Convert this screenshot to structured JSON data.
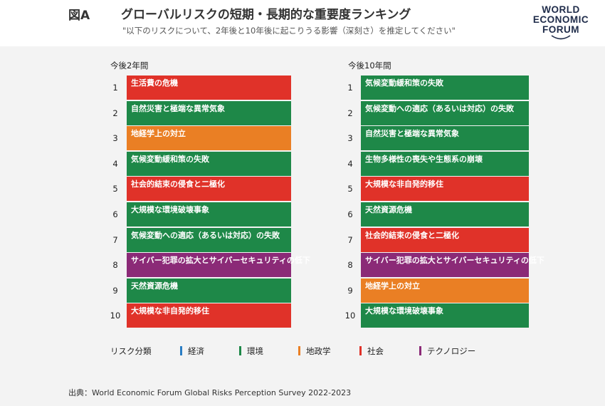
{
  "header": {
    "figure_label": "図A",
    "title": "グローバルリスクの短期・長期的な重要度ランキング",
    "subtitle": "\"以下のリスクについて、2年後と10年後に起こりうる影響（深刻さ）を推定してください\"",
    "logo_lines": [
      "WORLD",
      "ECONOMIC",
      "FORUM"
    ]
  },
  "colors": {
    "経済": "#2a7dc4",
    "環境": "#1e8848",
    "地政学": "#ea7f24",
    "社会": "#e03229",
    "テクノロジー": "#8b2a77"
  },
  "chart_data": {
    "type": "table",
    "columns": [
      {
        "title": "今後2年間",
        "rows": [
          {
            "rank": "1",
            "label": "生活費の危機",
            "category": "社会"
          },
          {
            "rank": "2",
            "label": "自然災害と極端な異常気象",
            "category": "環境"
          },
          {
            "rank": "3",
            "label": "地経学上の対立",
            "category": "地政学"
          },
          {
            "rank": "4",
            "label": "気候変動緩和策の失敗",
            "category": "環境"
          },
          {
            "rank": "5",
            "label": "社会的結束の侵食と二極化",
            "category": "社会"
          },
          {
            "rank": "6",
            "label": "大規模な環境破壊事象",
            "category": "環境"
          },
          {
            "rank": "7",
            "label": "気候変動への適応（あるいは対応）の失敗",
            "category": "環境"
          },
          {
            "rank": "8",
            "label": "サイバー犯罪の拡大とサイバーセキュリティの低下",
            "category": "テクノロジー"
          },
          {
            "rank": "9",
            "label": "天然資源危機",
            "category": "環境"
          },
          {
            "rank": "10",
            "label": "大規模な非自発的移住",
            "category": "社会"
          }
        ]
      },
      {
        "title": "今後10年間",
        "rows": [
          {
            "rank": "1",
            "label": "気候変動緩和策の失敗",
            "category": "環境"
          },
          {
            "rank": "2",
            "label": "気候変動への適応（あるいは対応）の失敗",
            "category": "環境"
          },
          {
            "rank": "3",
            "label": "自然災害と極端な異常気象",
            "category": "環境"
          },
          {
            "rank": "4",
            "label": "生物多様性の喪失や生態系の崩壊",
            "category": "環境"
          },
          {
            "rank": "5",
            "label": "大規模な非自発的移住",
            "category": "社会"
          },
          {
            "rank": "6",
            "label": "天然資源危機",
            "category": "環境"
          },
          {
            "rank": "7",
            "label": "社会的結束の侵食と二極化",
            "category": "社会"
          },
          {
            "rank": "8",
            "label": "サイバー犯罪の拡大とサイバーセキュリティの低下",
            "category": "テクノロジー"
          },
          {
            "rank": "9",
            "label": "地経学上の対立",
            "category": "地政学"
          },
          {
            "rank": "10",
            "label": "大規模な環境破壊事象",
            "category": "環境"
          }
        ]
      }
    ],
    "legend": {
      "title": "リスク分類",
      "items": [
        "経済",
        "環境",
        "地政学",
        "社会",
        "テクノロジー"
      ]
    }
  },
  "source": "出典：World Economic Forum Global Risks Perception Survey 2022-2023"
}
